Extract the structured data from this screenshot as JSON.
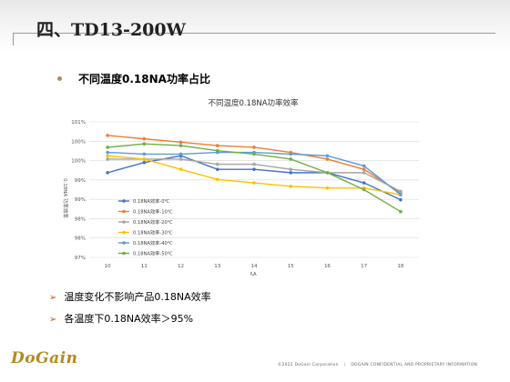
{
  "slide": {
    "title": "四、TD13-200W",
    "heading": "不同温度0.18NA功率占比",
    "bullets": [
      "温度变化不影响产品0.18NA效率",
      "各温度下0.18NA效率＞95%"
    ],
    "logo": "DoGain",
    "footer_left": "©2022 DoGain Corporation",
    "footer_right": "DOGAIN CONFIDENTIAL AND PROPRIETARY INFORMATION"
  },
  "chart_data": {
    "type": "line",
    "title": "不同温度0.18NA功率效率",
    "xlabel": "I\\A",
    "ylabel": "0.18NA 功率效率",
    "x": [
      10,
      11,
      12,
      13,
      14,
      15,
      16,
      17,
      18
    ],
    "ylim": [
      97,
      101
    ],
    "yticks": [
      "97%",
      "98%",
      "98%",
      "99%",
      "99%",
      "100%",
      "100%",
      "101%"
    ],
    "grid": true,
    "legend_position": "left-inside",
    "series": [
      {
        "name": "0.18NA效率-0℃",
        "color": "#4472c4",
        "values": [
          99.5,
          99.8,
          100.0,
          99.6,
          99.6,
          99.5,
          99.5,
          99.2,
          98.7
        ]
      },
      {
        "name": "0.18NA效率-10℃",
        "color": "#ed7d31",
        "values": [
          100.6,
          100.5,
          100.4,
          100.3,
          100.25,
          100.1,
          99.9,
          99.6,
          98.9
        ]
      },
      {
        "name": "0.18NA效率-20℃",
        "color": "#a5a5a5",
        "values": [
          99.9,
          99.9,
          99.9,
          99.75,
          99.75,
          99.6,
          99.5,
          99.5,
          98.95
        ]
      },
      {
        "name": "0.18NA效率-30℃",
        "color": "#ffc000",
        "values": [
          100.0,
          99.9,
          99.6,
          99.3,
          99.2,
          99.1,
          99.05,
          99.05,
          98.85
        ]
      },
      {
        "name": "0.18NA效率-40℃",
        "color": "#5b9bd5",
        "values": [
          100.1,
          100.05,
          100.05,
          100.1,
          100.1,
          100.05,
          100.0,
          99.7,
          98.85
        ]
      },
      {
        "name": "0.18NA效率-50℃",
        "color": "#70ad47",
        "values": [
          100.25,
          100.35,
          100.3,
          100.15,
          100.05,
          99.9,
          99.5,
          99.0,
          98.35
        ]
      }
    ]
  }
}
